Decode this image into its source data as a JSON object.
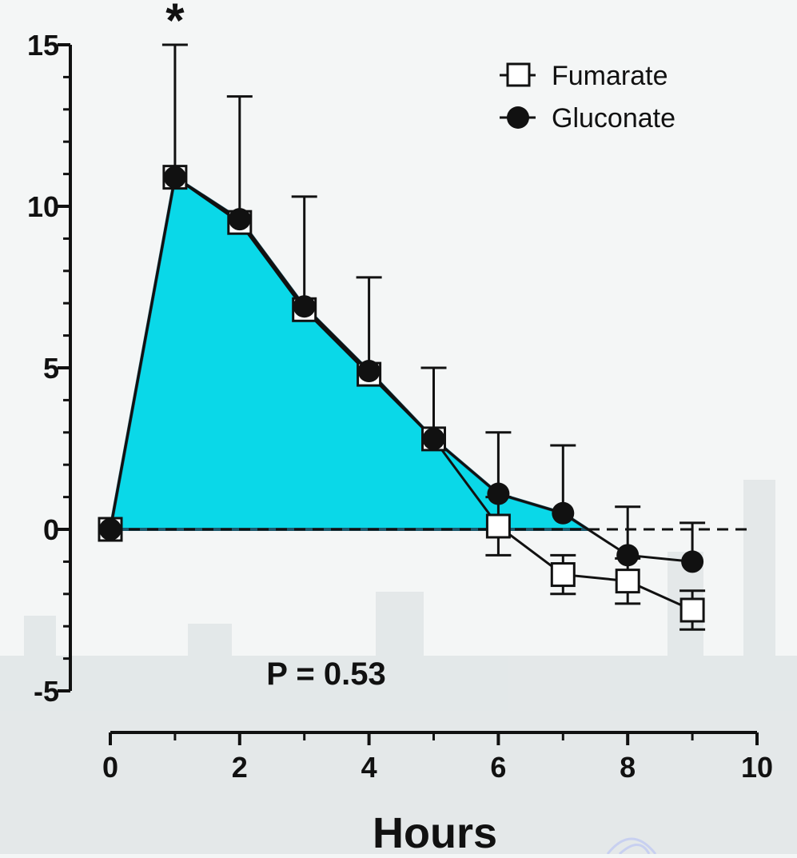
{
  "chart_data": {
    "type": "line",
    "xlabel": "Hours",
    "ylabel": "",
    "xlim": [
      0,
      10
    ],
    "ylim": [
      -5,
      15
    ],
    "x_ticks": [
      "0",
      "2",
      "4",
      "6",
      "8",
      "10"
    ],
    "y_ticks": [
      "15",
      "10",
      "5",
      "0",
      "-5"
    ],
    "reference_line": 0,
    "annotation": "P = 0.53",
    "significance_marker": {
      "x": 1,
      "label": "*"
    },
    "shaded_area": {
      "under_series": "Gluconate",
      "color": "#0ad8e8"
    },
    "legend_position": "top-right",
    "series": [
      {
        "name": "Fumarate",
        "marker": "open-square",
        "x": [
          0,
          1,
          2,
          3,
          4,
          5,
          6,
          7,
          8,
          9
        ],
        "values": [
          0,
          10.9,
          9.5,
          6.8,
          4.8,
          2.8,
          0.1,
          -1.4,
          -1.6,
          -2.5
        ],
        "error": [
          0,
          0,
          0,
          0,
          0,
          0,
          0.9,
          0.6,
          0.7,
          0.6
        ]
      },
      {
        "name": "Gluconate",
        "marker": "filled-circle",
        "x": [
          0,
          1,
          2,
          3,
          4,
          5,
          6,
          7,
          8,
          9
        ],
        "values": [
          0,
          10.9,
          9.6,
          6.9,
          4.9,
          2.8,
          1.1,
          0.5,
          -0.8,
          -1.0
        ],
        "error": [
          0,
          4.1,
          3.8,
          3.4,
          2.9,
          2.2,
          1.9,
          2.1,
          1.5,
          1.2
        ]
      }
    ]
  }
}
